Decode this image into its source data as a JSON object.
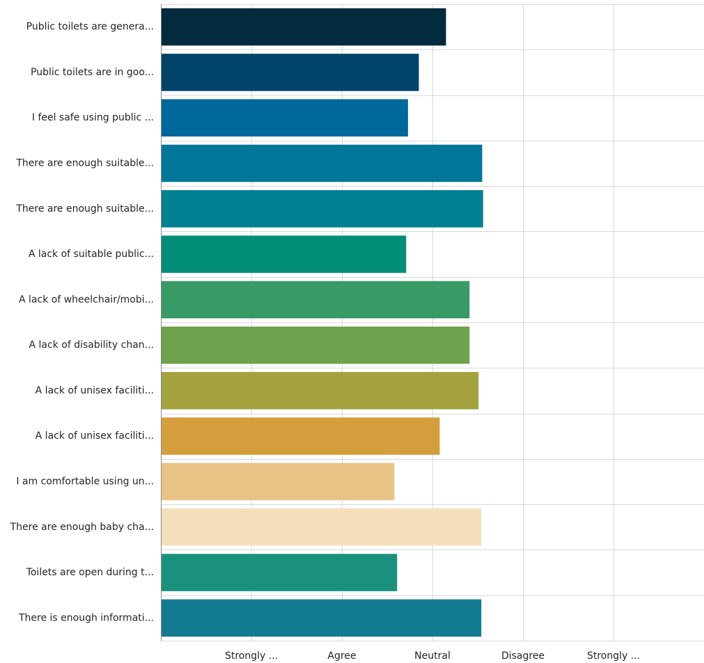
{
  "chart_data": {
    "type": "bar",
    "orientation": "horizontal",
    "title": "",
    "xlabel": "",
    "ylabel": "",
    "grid": true,
    "legend": "none",
    "xlim": [
      0,
      6
    ],
    "x_ticks": [
      {
        "value": 1,
        "label": "Strongly ..."
      },
      {
        "value": 2,
        "label": "Agree"
      },
      {
        "value": 3,
        "label": "Neutral"
      },
      {
        "value": 4,
        "label": "Disagree"
      },
      {
        "value": 5,
        "label": "Strongly ..."
      }
    ],
    "categories": [
      "Public toilets are genera...",
      "Public toilets are in goo...",
      "I feel safe using public ...",
      "There are enough suitable...",
      "There are enough suitable...",
      "A lack of suitable public...",
      "A lack of wheelchair/mobi...",
      "A lack of disability chan...",
      "A lack of unisex faciliti...",
      "A lack of unisex faciliti...",
      "I am comfortable using un...",
      "There are enough baby cha...",
      "Toilets are open during t...",
      "There is enough informati..."
    ],
    "values": [
      3.15,
      2.85,
      2.73,
      3.55,
      3.56,
      2.71,
      3.41,
      3.41,
      3.51,
      3.08,
      2.58,
      3.54,
      2.61,
      3.54
    ],
    "colors": [
      "#042a3d",
      "#00446a",
      "#00679a",
      "#007699",
      "#008191",
      "#008e78",
      "#389a64",
      "#6fa24c",
      "#a3a23e",
      "#d49e3c",
      "#e9c385",
      "#f5dfbb",
      "#1a917d",
      "#137b90"
    ]
  }
}
